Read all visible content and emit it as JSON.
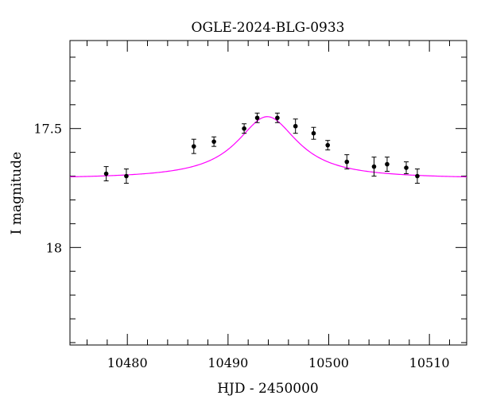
{
  "chart_data": {
    "type": "scatter",
    "title": "OGLE-2024-BLG-0933",
    "xlabel": "HJD - 2450000",
    "ylabel": "I magnitude",
    "xlim": [
      10474.3,
      10513.7
    ],
    "ylim": [
      18.41,
      17.13
    ],
    "y_inverted": true,
    "x_ticks": [
      10480,
      10490,
      10500,
      10510
    ],
    "x_tick_labels": [
      "10480",
      "10490",
      "10500",
      "10510"
    ],
    "y_ticks": [
      17.5,
      18
    ],
    "y_tick_labels": [
      "17.5",
      "18"
    ],
    "x_minor_step": 2,
    "y_minor_step": 0.1,
    "grid": false,
    "series": [
      {
        "kind": "points_with_errorbars",
        "color": "#000000",
        "points": [
          {
            "x": 10477.9,
            "y": 17.69,
            "err": 0.03
          },
          {
            "x": 10479.9,
            "y": 17.7,
            "err": 0.03
          },
          {
            "x": 10486.6,
            "y": 17.575,
            "err": 0.03
          },
          {
            "x": 10488.6,
            "y": 17.555,
            "err": 0.02
          },
          {
            "x": 10491.6,
            "y": 17.5,
            "err": 0.02
          },
          {
            "x": 10492.9,
            "y": 17.455,
            "err": 0.02
          },
          {
            "x": 10494.9,
            "y": 17.455,
            "err": 0.02
          },
          {
            "x": 10496.7,
            "y": 17.49,
            "err": 0.03
          },
          {
            "x": 10498.5,
            "y": 17.52,
            "err": 0.025
          },
          {
            "x": 10499.9,
            "y": 17.57,
            "err": 0.02
          },
          {
            "x": 10501.8,
            "y": 17.64,
            "err": 0.03
          },
          {
            "x": 10504.5,
            "y": 17.66,
            "err": 0.04
          },
          {
            "x": 10505.8,
            "y": 17.65,
            "err": 0.03
          },
          {
            "x": 10507.7,
            "y": 17.665,
            "err": 0.025
          },
          {
            "x": 10508.8,
            "y": 17.7,
            "err": 0.03
          }
        ]
      },
      {
        "kind": "model_curve",
        "color": "#ff00ff",
        "baseline_mag": 17.712,
        "peak_time": 10493.9,
        "peak_amplitude_mag": 0.262,
        "width": 3.7
      }
    ]
  }
}
